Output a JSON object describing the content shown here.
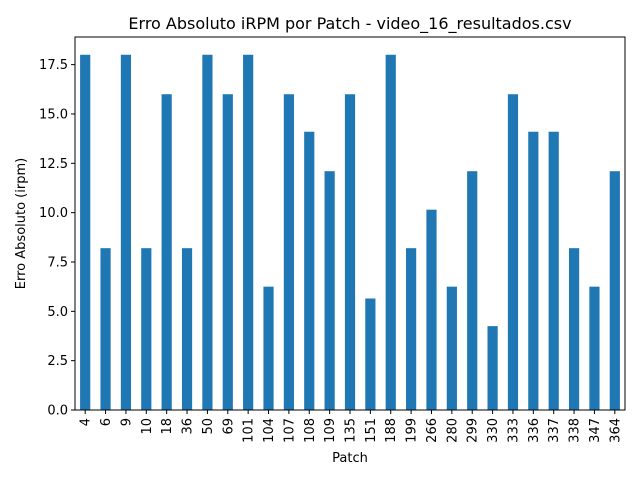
{
  "chart_data": {
    "type": "bar",
    "title": "Erro Absoluto iRPM por Patch - video_16_resultados.csv",
    "xlabel": "Patch",
    "ylabel": "Erro Absoluto (irpm)",
    "categories": [
      "4",
      "6",
      "9",
      "10",
      "18",
      "36",
      "50",
      "69",
      "101",
      "104",
      "107",
      "108",
      "109",
      "135",
      "151",
      "188",
      "199",
      "266",
      "280",
      "299",
      "330",
      "333",
      "336",
      "337",
      "338",
      "347",
      "364"
    ],
    "values": [
      18.0,
      8.2,
      18.0,
      8.2,
      16.0,
      8.2,
      18.0,
      16.0,
      18.0,
      6.25,
      16.0,
      14.1,
      12.1,
      16.0,
      5.65,
      18.0,
      8.2,
      10.15,
      6.25,
      12.1,
      4.25,
      16.0,
      14.1,
      14.1,
      8.2,
      6.25,
      12.1
    ],
    "ylim": [
      0,
      18.9
    ],
    "yticks": [
      "0.0",
      "2.5",
      "5.0",
      "7.5",
      "10.0",
      "12.5",
      "15.0",
      "17.5"
    ],
    "bar_color": "#1f77b4",
    "grid": false,
    "legend": false
  }
}
